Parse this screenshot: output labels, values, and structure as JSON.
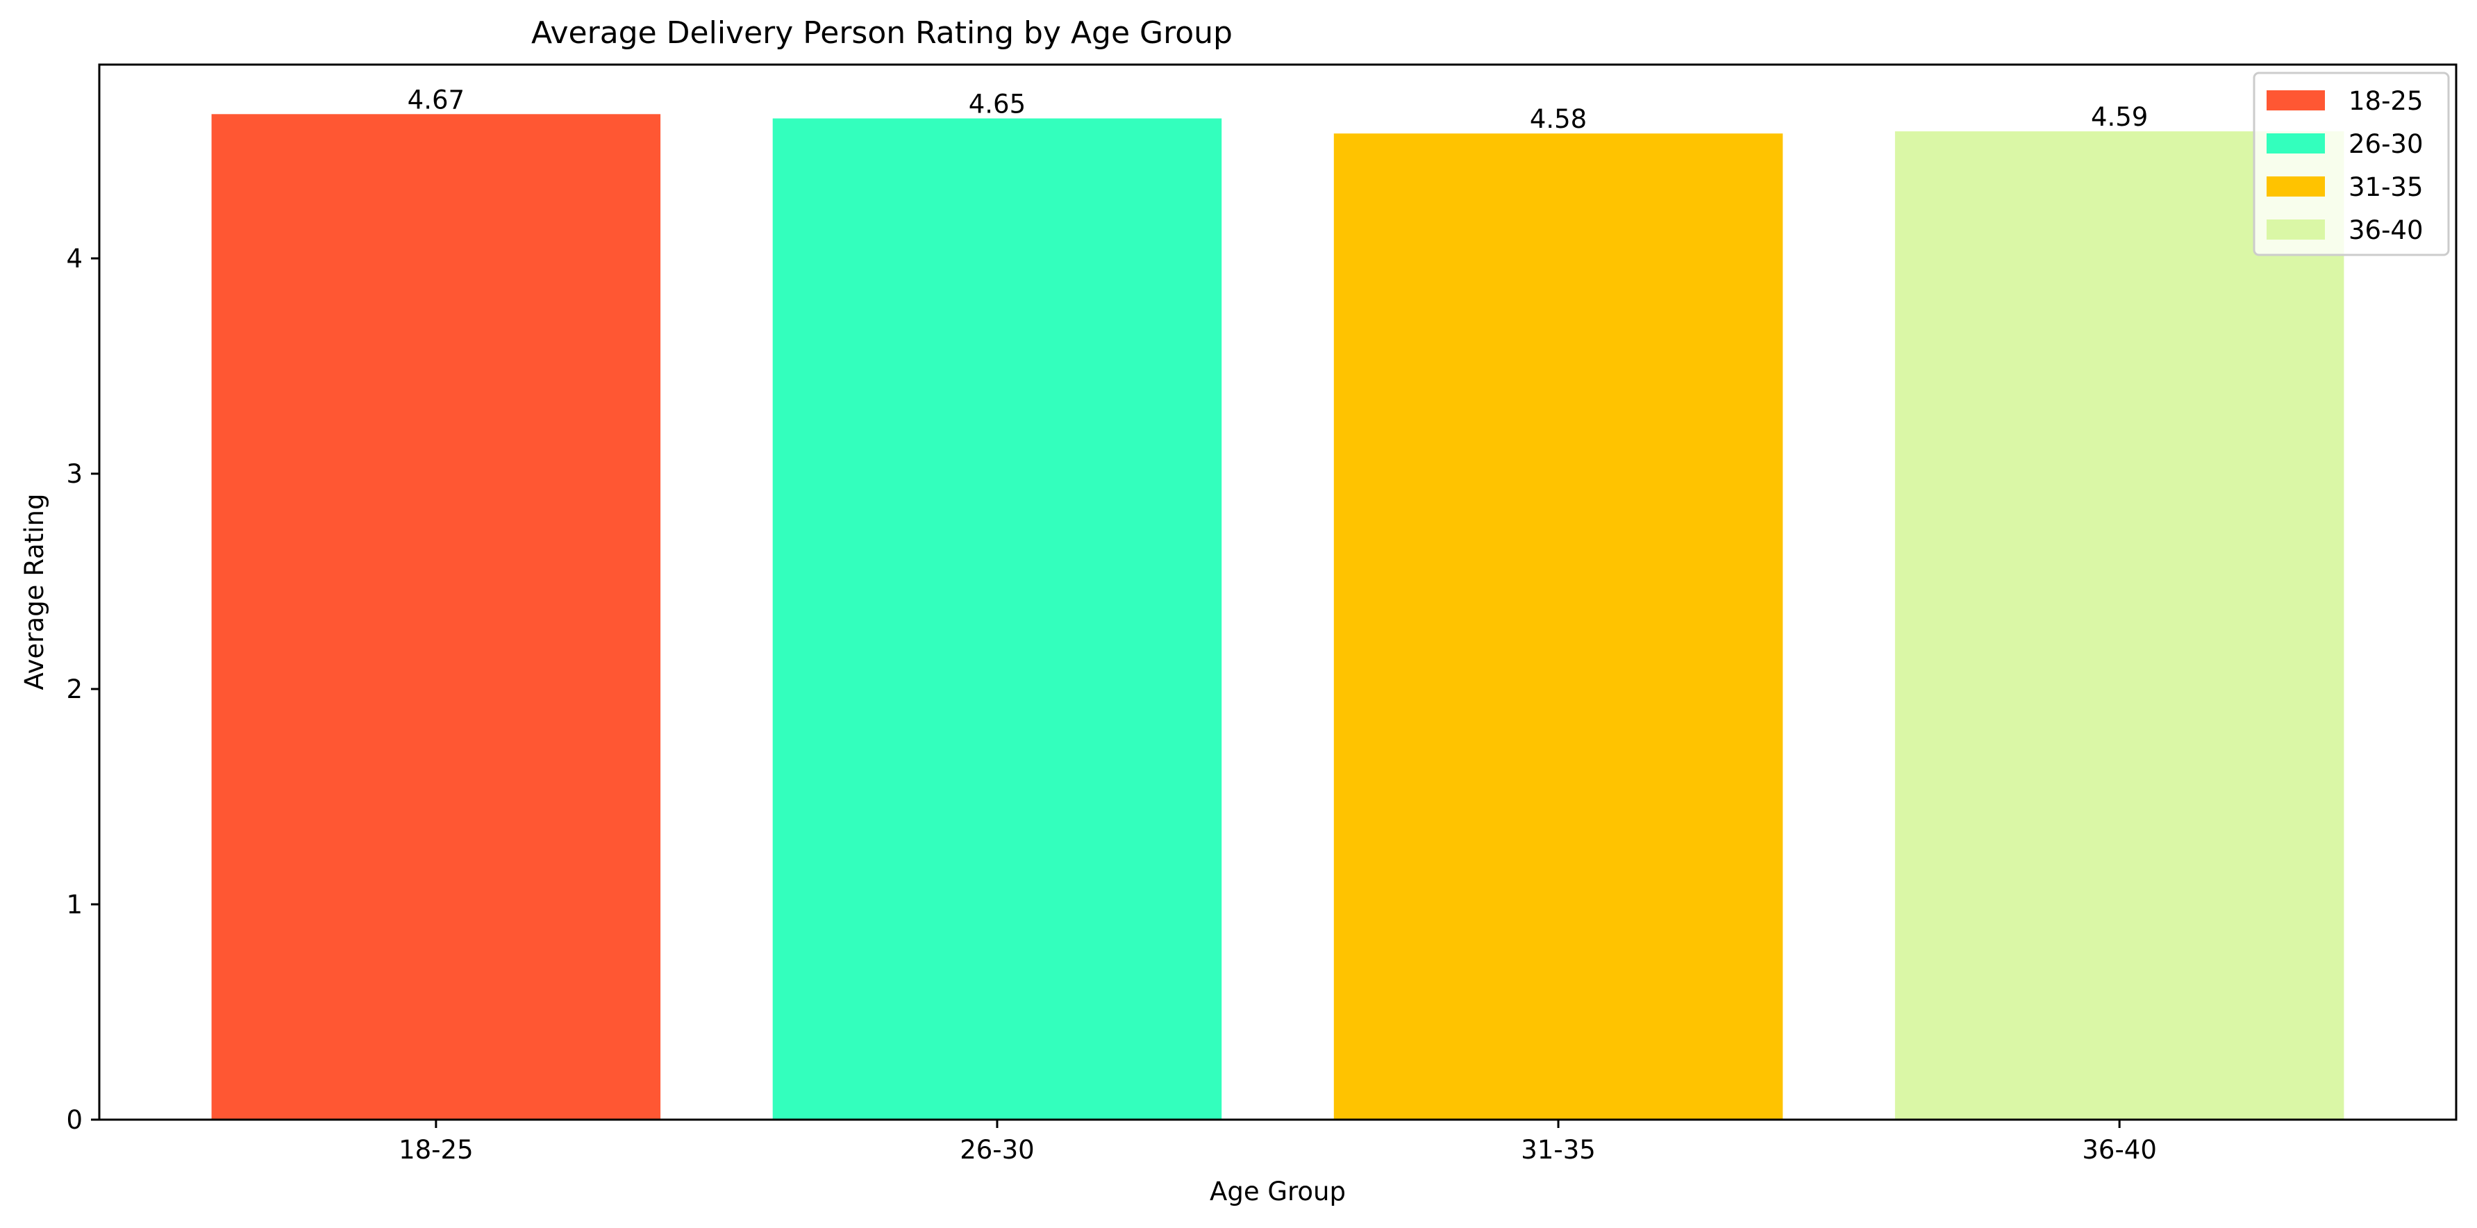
{
  "chart_data": {
    "type": "bar",
    "title": "Average Delivery Person Rating by Age Group",
    "xlabel": "Age Group",
    "ylabel": "Average Rating",
    "categories": [
      "18-25",
      "26-30",
      "31-35",
      "36-40"
    ],
    "values": [
      4.67,
      4.65,
      4.58,
      4.59
    ],
    "value_labels": [
      "4.67",
      "4.65",
      "4.58",
      "4.59"
    ],
    "colors": [
      "#ff5733",
      "#33ffbd",
      "#ffc300",
      "#daf7a6"
    ],
    "ylim": [
      0,
      4.9
    ],
    "yticks": [
      0,
      1,
      2,
      3,
      4
    ],
    "ytick_labels": [
      "0",
      "1",
      "2",
      "3",
      "4"
    ],
    "grid": false,
    "legend": {
      "placement": "top-right",
      "entries": [
        "18-25",
        "26-30",
        "31-35",
        "36-40"
      ]
    }
  }
}
